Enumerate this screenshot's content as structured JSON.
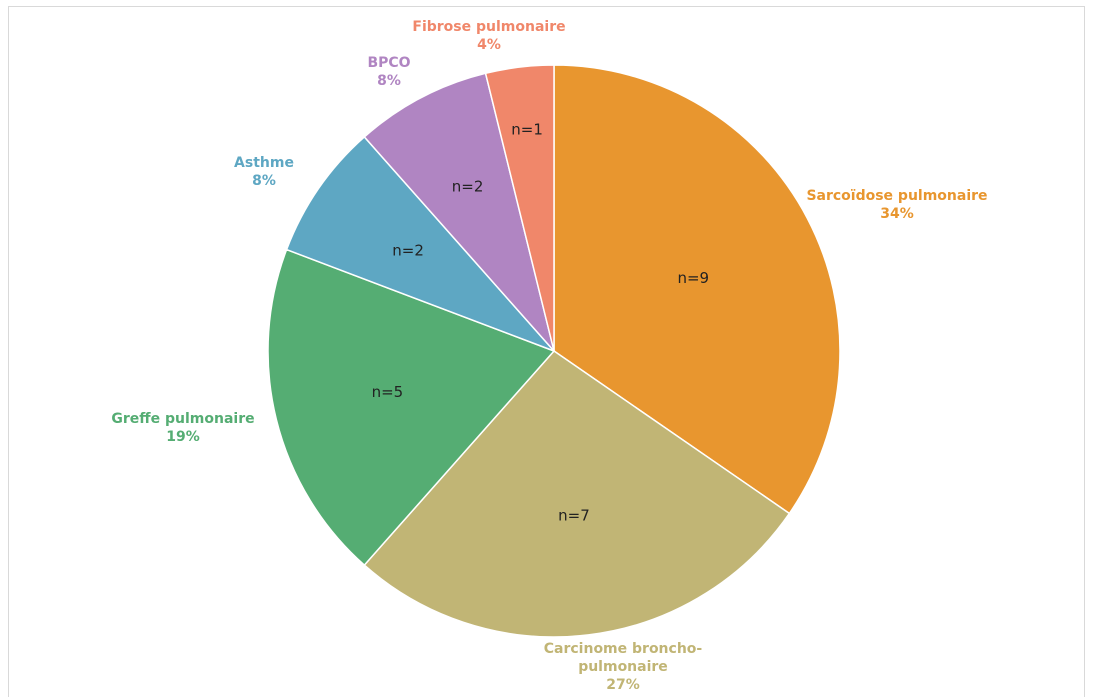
{
  "chart_data": {
    "type": "pie",
    "title": "",
    "start_angle_deg": 0,
    "direction": "clockwise",
    "slices": [
      {
        "name": "Sarcoïdose pulmonaire",
        "label_lines": [
          "Sarcoïdose pulmonaire",
          "34%"
        ],
        "count": 9,
        "count_label": "n=9",
        "percent": 34,
        "color": "#e8962f"
      },
      {
        "name": "Carcinome broncho-pulmonaire",
        "label_lines": [
          "Carcinome broncho-",
          "pulmonaire",
          "27%"
        ],
        "count": 7,
        "count_label": "n=7",
        "percent": 27,
        "color": "#c1b575"
      },
      {
        "name": "Greffe pulmonaire",
        "label_lines": [
          "Greffe pulmonaire",
          "19%"
        ],
        "count": 5,
        "count_label": "n=5",
        "percent": 19,
        "color": "#55ad73"
      },
      {
        "name": "Asthme",
        "label_lines": [
          "Asthme",
          "8%"
        ],
        "count": 2,
        "count_label": "n=2",
        "percent": 8,
        "color": "#5ea7c3"
      },
      {
        "name": "BPCO",
        "label_lines": [
          "BPCO",
          "8%"
        ],
        "count": 2,
        "count_label": "n=2",
        "percent": 8,
        "color": "#b085c2"
      },
      {
        "name": "Fibrose pulmonaire",
        "label_lines": [
          "Fibrose pulmonaire",
          "4%"
        ],
        "count": 1,
        "count_label": "n=1",
        "percent": 4,
        "color": "#f0876a"
      }
    ]
  }
}
